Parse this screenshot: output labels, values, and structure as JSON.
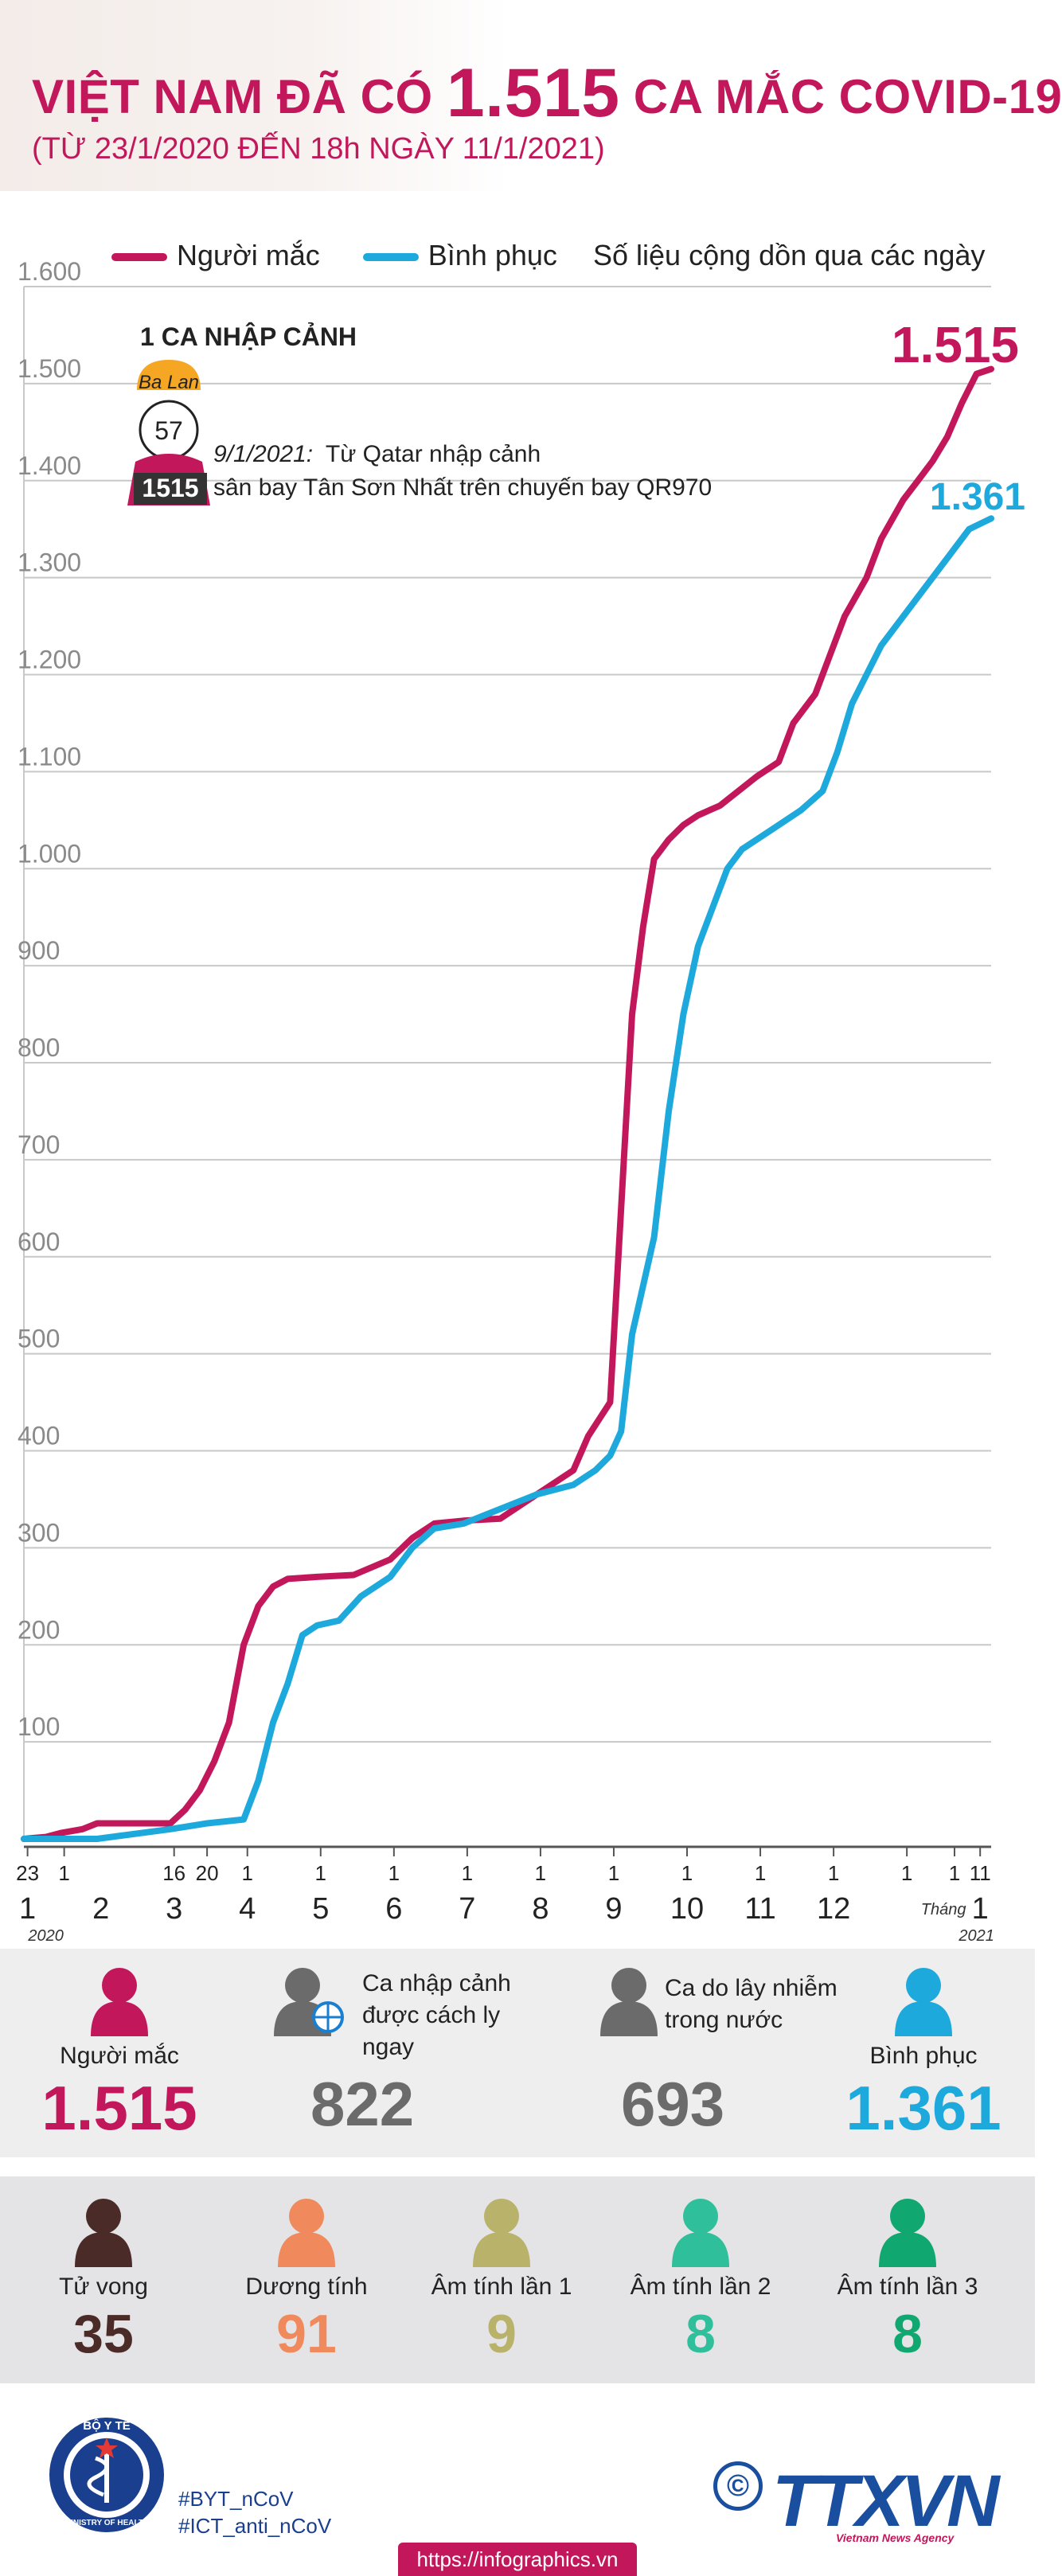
{
  "header": {
    "title_pre": "VIỆT NAM ĐÃ CÓ",
    "title_num": "1.515",
    "title_post": "CA MẮC COVID-19",
    "subtitle": "(TỪ 23/1/2020 ĐẾN 18h NGÀY 11/1/2021)"
  },
  "legend": {
    "infected": "Người mắc",
    "recovered": "Bình phục",
    "note": "Số liệu cộng dồn qua các ngày"
  },
  "colors": {
    "infected": "#c2185b",
    "recovered": "#1ea9dc",
    "gray": "#6b6b6b",
    "death": "#4a2b27",
    "positive": "#f08a5d",
    "neg1": "#b8b26a",
    "neg2": "#2fbf9a",
    "neg3": "#10a870"
  },
  "case_note": {
    "heading": "1 CA NHẬP CẢNH",
    "nationality": "Ba Lan",
    "age": "57",
    "case_id": "1515",
    "date": "9/1/2021:",
    "text_line1": "Từ Qatar nhập cảnh",
    "text_line2": "sân bay Tân Sơn Nhất trên chuyến bay QR970"
  },
  "chart_data": {
    "type": "line",
    "title": "Số liệu cộng dồn qua các ngày",
    "ylim": [
      0,
      1600
    ],
    "yticks": [
      "1.600",
      "1.500",
      "1.400",
      "1.300",
      "1.200",
      "1.100",
      "1.000",
      "900",
      "800",
      "700",
      "600",
      "500",
      "400",
      "300",
      "200",
      "100"
    ],
    "month_labels": [
      "1",
      "2",
      "3",
      "4",
      "5",
      "6",
      "7",
      "8",
      "9",
      "10",
      "11",
      "12",
      "1"
    ],
    "day_labels": [
      "23",
      "1",
      "16",
      "20",
      "1",
      "1",
      "1",
      "1",
      "1",
      "1",
      "1",
      "1",
      "1",
      "1",
      "1",
      "11"
    ],
    "year_start": "2020",
    "year_end": "2021",
    "month_word": "Tháng",
    "series": [
      {
        "name": "Người mắc",
        "final_label": "1.515",
        "points": [
          [
            0,
            0
          ],
          [
            0.3,
            2
          ],
          [
            0.5,
            6
          ],
          [
            0.8,
            10
          ],
          [
            1.0,
            16
          ],
          [
            1.5,
            16
          ],
          [
            2.0,
            16
          ],
          [
            2.2,
            30
          ],
          [
            2.4,
            50
          ],
          [
            2.6,
            80
          ],
          [
            2.8,
            120
          ],
          [
            3.0,
            200
          ],
          [
            3.2,
            240
          ],
          [
            3.4,
            260
          ],
          [
            3.6,
            268
          ],
          [
            4.0,
            270
          ],
          [
            4.5,
            272
          ],
          [
            5.0,
            288
          ],
          [
            5.3,
            310
          ],
          [
            5.6,
            325
          ],
          [
            6.0,
            328
          ],
          [
            6.5,
            330
          ],
          [
            7.0,
            355
          ],
          [
            7.2,
            365
          ],
          [
            7.5,
            380
          ],
          [
            7.7,
            415
          ],
          [
            8.0,
            450
          ],
          [
            8.15,
            650
          ],
          [
            8.3,
            850
          ],
          [
            8.45,
            940
          ],
          [
            8.6,
            1010
          ],
          [
            8.8,
            1030
          ],
          [
            9.0,
            1045
          ],
          [
            9.2,
            1055
          ],
          [
            9.5,
            1065
          ],
          [
            10.0,
            1095
          ],
          [
            10.3,
            1110
          ],
          [
            10.5,
            1150
          ],
          [
            10.8,
            1180
          ],
          [
            11.0,
            1220
          ],
          [
            11.2,
            1260
          ],
          [
            11.5,
            1300
          ],
          [
            11.7,
            1340
          ],
          [
            12.0,
            1380
          ],
          [
            12.2,
            1400
          ],
          [
            12.4,
            1420
          ],
          [
            12.6,
            1445
          ],
          [
            12.8,
            1480
          ],
          [
            13.0,
            1510
          ],
          [
            13.2,
            1515
          ]
        ]
      },
      {
        "name": "Bình phục",
        "final_label": "1.361",
        "points": [
          [
            0,
            0
          ],
          [
            1.0,
            0
          ],
          [
            2.0,
            10
          ],
          [
            2.5,
            16
          ],
          [
            3.0,
            20
          ],
          [
            3.2,
            60
          ],
          [
            3.4,
            120
          ],
          [
            3.6,
            160
          ],
          [
            3.8,
            210
          ],
          [
            4.0,
            220
          ],
          [
            4.3,
            225
          ],
          [
            4.6,
            250
          ],
          [
            5.0,
            270
          ],
          [
            5.3,
            300
          ],
          [
            5.6,
            320
          ],
          [
            6.0,
            325
          ],
          [
            6.5,
            340
          ],
          [
            7.0,
            355
          ],
          [
            7.5,
            365
          ],
          [
            7.8,
            380
          ],
          [
            8.0,
            395
          ],
          [
            8.15,
            420
          ],
          [
            8.3,
            520
          ],
          [
            8.6,
            620
          ],
          [
            8.8,
            750
          ],
          [
            9.0,
            850
          ],
          [
            9.2,
            920
          ],
          [
            9.4,
            960
          ],
          [
            9.6,
            1000
          ],
          [
            9.8,
            1020
          ],
          [
            10.0,
            1030
          ],
          [
            10.3,
            1045
          ],
          [
            10.6,
            1060
          ],
          [
            10.9,
            1080
          ],
          [
            11.1,
            1120
          ],
          [
            11.3,
            1170
          ],
          [
            11.5,
            1200
          ],
          [
            11.7,
            1230
          ],
          [
            12.0,
            1260
          ],
          [
            12.3,
            1290
          ],
          [
            12.6,
            1320
          ],
          [
            12.9,
            1350
          ],
          [
            13.2,
            1361
          ]
        ]
      }
    ]
  },
  "summary": {
    "infected": {
      "label": "Người mắc",
      "value": "1.515"
    },
    "imported": {
      "label1": "Ca nhập cảnh",
      "label2": "được cách ly ngay",
      "value": "822"
    },
    "domestic": {
      "label1": "Ca do lây nhiễm",
      "label2": "trong nước",
      "value": "693"
    },
    "recovered": {
      "label": "Bình phục",
      "value": "1.361"
    }
  },
  "outcomes": [
    {
      "label": "Tử vong",
      "value": "35",
      "color": "#4a2b27",
      "icon": "person-icon"
    },
    {
      "label": "Dương tính",
      "value": "91",
      "color": "#f08a5d",
      "icon": "person-icon"
    },
    {
      "label": "Âm tính lần 1",
      "value": "9",
      "color": "#b8b26a",
      "icon": "person-icon"
    },
    {
      "label": "Âm tính lần 2",
      "value": "8",
      "color": "#2fbf9a",
      "icon": "person-icon"
    },
    {
      "label": "Âm tính lần 3",
      "value": "8",
      "color": "#10a870",
      "icon": "person-icon"
    }
  ],
  "footer": {
    "logo_text": "BỘ Y TẾ",
    "logo_sub": "MINISTRY OF HEALTH",
    "tag1": "#BYT_nCoV",
    "tag2": "#ICT_anti_nCoV",
    "url": "https://infographics.vn",
    "agency": "TTXVN",
    "agency_sub": "Vietnam News Agency",
    "copyright": "©"
  }
}
